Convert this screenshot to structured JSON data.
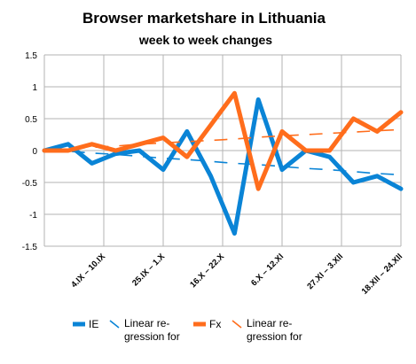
{
  "chart_data": {
    "type": "line",
    "title": "Browser marketshare in Lithuania",
    "subtitle": "week to week changes",
    "xlabel": "",
    "ylabel": "",
    "ylim": [
      -1.5,
      1.5
    ],
    "yticks": [
      "1.5",
      "1",
      "0.5",
      "0",
      "-0.5",
      "-1",
      "-1.5"
    ],
    "x_tick_labels": [
      "4.IX – 10.IX",
      "25.IX – 1.X",
      "16.X – 22.X",
      "6.X – 12.XI",
      "27.XI – 3.XII",
      "18.XII – 24.XII"
    ],
    "grid": true,
    "legend_position": "bottom",
    "series": [
      {
        "name": "IE",
        "color": "#0a84d6",
        "values": [
          0.0,
          0.1,
          -0.2,
          -0.05,
          0.0,
          -0.3,
          0.3,
          -0.4,
          -1.3,
          0.8,
          -0.3,
          0.0,
          -0.1,
          -0.5,
          -0.4,
          -0.6
        ]
      },
      {
        "name": "Linear re-gression for",
        "color": "#0a84d6",
        "style": "dashed-trend",
        "values": [
          0.02,
          -0.01,
          -0.04,
          -0.06,
          -0.09,
          -0.12,
          -0.14,
          -0.17,
          -0.2,
          -0.22,
          -0.25,
          -0.28,
          -0.3,
          -0.33,
          -0.36,
          -0.38
        ]
      },
      {
        "name": "Fx",
        "color": "#ff6d1c",
        "values": [
          0.0,
          0.0,
          0.1,
          0.0,
          0.1,
          0.2,
          -0.1,
          0.4,
          0.9,
          -0.6,
          0.3,
          0.0,
          0.0,
          0.5,
          0.3,
          0.6
        ]
      },
      {
        "name": "Linear re-gression for",
        "color": "#ff6d1c",
        "style": "dashed-trend",
        "values": [
          0.01,
          0.03,
          0.05,
          0.07,
          0.1,
          0.12,
          0.14,
          0.16,
          0.18,
          0.21,
          0.23,
          0.25,
          0.27,
          0.29,
          0.31,
          0.33
        ]
      }
    ],
    "legend": [
      {
        "label": "IE",
        "marker": "line"
      },
      {
        "label": "Linear re-\ngression for",
        "marker": "trend"
      },
      {
        "label": "Fx",
        "marker": "line"
      },
      {
        "label": "Linear re-\ngression for",
        "marker": "trend"
      }
    ]
  }
}
